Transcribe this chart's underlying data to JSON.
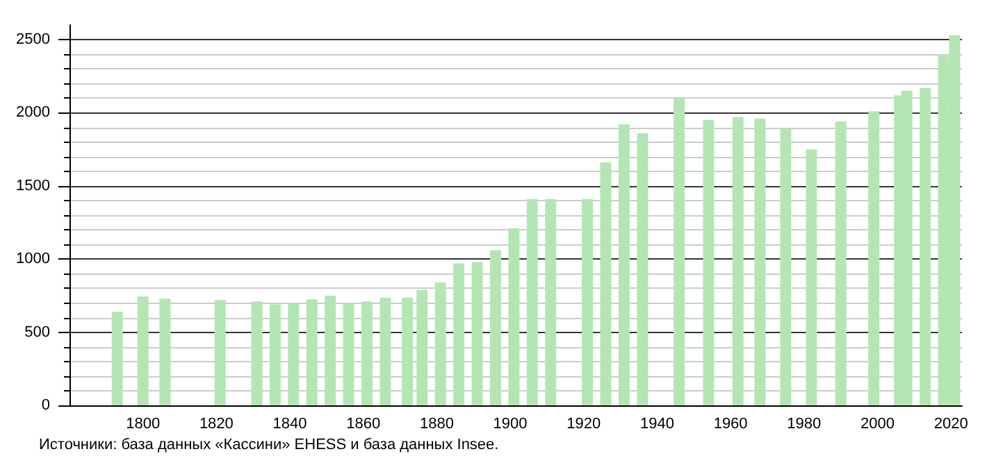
{
  "chart_data": {
    "type": "bar",
    "x": [
      1793,
      1800,
      1806,
      1821,
      1831,
      1836,
      1841,
      1846,
      1851,
      1856,
      1861,
      1866,
      1872,
      1876,
      1881,
      1886,
      1891,
      1896,
      1901,
      1906,
      1911,
      1921,
      1926,
      1931,
      1936,
      1946,
      1954,
      1962,
      1968,
      1975,
      1982,
      1990,
      1999,
      2006,
      2008,
      2013,
      2018,
      2021
    ],
    "values": [
      640,
      745,
      730,
      720,
      710,
      690,
      700,
      725,
      750,
      700,
      710,
      735,
      735,
      790,
      840,
      970,
      980,
      1060,
      1210,
      1410,
      1410,
      1410,
      1660,
      1920,
      1860,
      2100,
      1950,
      1970,
      1960,
      1890,
      1750,
      1940,
      2010,
      2120,
      2150,
      2170,
      2390,
      2530
    ],
    "color": "#b3e6b3",
    "xlim": [
      1780,
      2023
    ],
    "xticks": [
      1800,
      1820,
      1840,
      1860,
      1880,
      1900,
      1920,
      1940,
      1960,
      1980,
      2000,
      2020
    ],
    "ylim": [
      0,
      2600
    ],
    "yticks": [
      0,
      500,
      1000,
      1500,
      2000,
      2500
    ],
    "grid": "y",
    "annotations": [
      "Источники: база данных «Кассини» EHESS и база данных Insee."
    ]
  }
}
